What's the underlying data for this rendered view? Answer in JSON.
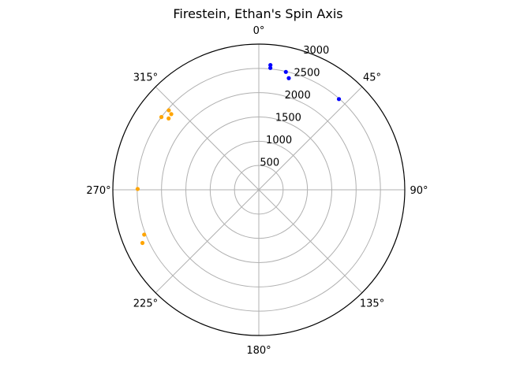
{
  "chart_data": {
    "type": "scatter",
    "projection": "polar",
    "title": "Firestein, Ethan's Spin Axis",
    "theta_direction": "clockwise",
    "theta_zero_location": "top",
    "theta_ticks": [
      "0°",
      "45°",
      "90°",
      "135°",
      "180°",
      "225°",
      "270°",
      "315°"
    ],
    "r_ticks": [
      "500",
      "1000",
      "1500",
      "2000",
      "2500",
      "3000"
    ],
    "r_tick_values": [
      500,
      1000,
      1500,
      2000,
      2500,
      3000
    ],
    "rlim": [
      0,
      3000
    ],
    "grid": true,
    "legend": "none",
    "series": [
      {
        "color": "#0000ff",
        "points": [
          {
            "theta": 5.3,
            "r": 2580
          },
          {
            "theta": 5.4,
            "r": 2520
          },
          {
            "theta": 12.9,
            "r": 2490
          },
          {
            "theta": 15.0,
            "r": 2380
          },
          {
            "theta": 41.4,
            "r": 2490
          }
        ]
      },
      {
        "color": "#ffa500",
        "points": [
          {
            "theta": 311.5,
            "r": 2470
          },
          {
            "theta": 306.8,
            "r": 2500
          },
          {
            "theta": 310.9,
            "r": 2380
          },
          {
            "theta": 308.4,
            "r": 2365
          },
          {
            "theta": 270.4,
            "r": 2490
          },
          {
            "theta": 248.6,
            "r": 2530
          },
          {
            "theta": 245.4,
            "r": 2630
          }
        ]
      }
    ]
  }
}
